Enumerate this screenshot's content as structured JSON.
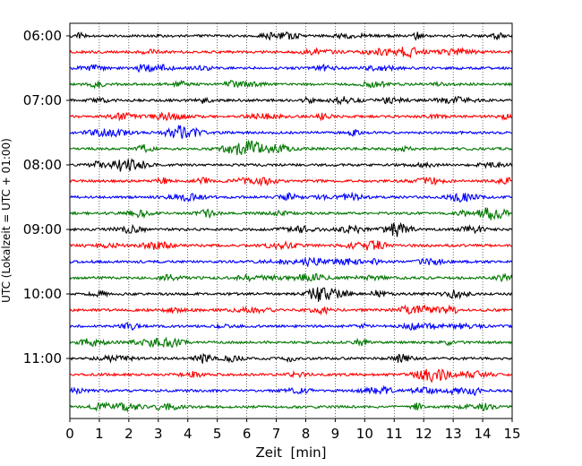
{
  "chart_data": {
    "type": "line",
    "title": "",
    "xlabel": "Zeit  [min]",
    "ylabel": "UTC (Lokalzeit = UTC + 01:00)",
    "xlim": [
      0,
      15
    ],
    "xticks": [
      0,
      1,
      2,
      3,
      4,
      5,
      6,
      7,
      8,
      9,
      10,
      11,
      12,
      13,
      14,
      15
    ],
    "yticks": [
      "06:00",
      "07:00",
      "08:00",
      "09:00",
      "10:00",
      "11:00"
    ],
    "trace_interval_min": 15,
    "trace_count": 24,
    "trace_colors": [
      "#000000",
      "#ff0000",
      "#0000ff",
      "#007700"
    ],
    "grid": "vertical dotted",
    "start_label": "06:00"
  }
}
